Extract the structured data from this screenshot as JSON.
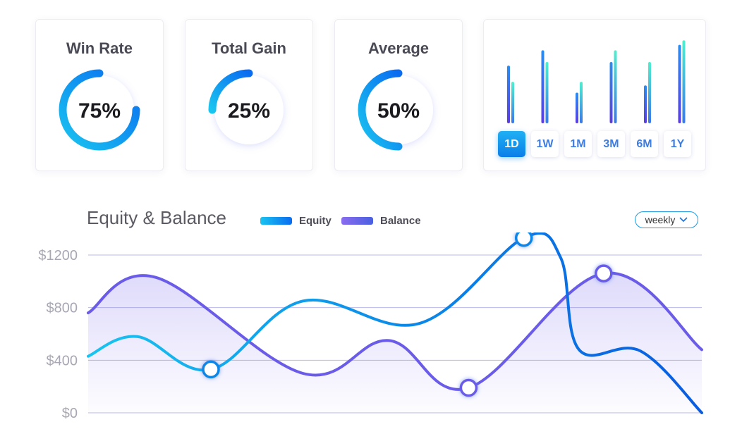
{
  "stats": [
    {
      "title": "Win Rate",
      "value_text": "75%",
      "fraction": 0.75
    },
    {
      "title": "Total Gain",
      "value_text": "25%",
      "fraction": 0.25
    },
    {
      "title": "Average",
      "value_text": "50%",
      "fraction": 0.5
    }
  ],
  "periods": {
    "options": [
      "1D",
      "1W",
      "1M",
      "3M",
      "6M",
      "1Y"
    ],
    "selected": "1D",
    "bars": [
      {
        "a": 0.64,
        "b": 0.46
      },
      {
        "a": 0.81,
        "b": 0.68
      },
      {
        "a": 0.34,
        "b": 0.46
      },
      {
        "a": 0.68,
        "b": 0.81
      },
      {
        "a": 0.42,
        "b": 0.68
      },
      {
        "a": 0.87,
        "b": 0.92
      }
    ]
  },
  "colors": {
    "equity": "#0a86e8",
    "equity_light": "#19c4f0",
    "balance": "#6a5ce8",
    "gauge_start": "#19c4f0",
    "gauge_end": "#0a6cf0",
    "grid": "#b8b8e8"
  },
  "chart_data": {
    "type": "line",
    "title": "Equity & Balance",
    "period_selector": "weekly",
    "legend_position": "top",
    "ylim": [
      0,
      1200
    ],
    "yticks": [
      "$1200",
      "$800",
      "$400",
      "$0"
    ],
    "ytick_values": [
      1200,
      800,
      400,
      0
    ],
    "grid": true,
    "series": [
      {
        "name": "Equity",
        "values": [
          [
            0,
            430
          ],
          [
            0.08,
            580
          ],
          [
            0.2,
            330
          ],
          [
            0.35,
            850
          ],
          [
            0.54,
            680
          ],
          [
            0.71,
            1330
          ],
          [
            0.77,
            1180
          ],
          [
            0.8,
            480
          ],
          [
            0.9,
            470
          ],
          [
            1.0,
            0
          ]
        ],
        "markers": [
          [
            0.2,
            330
          ],
          [
            0.71,
            1330
          ]
        ]
      },
      {
        "name": "Balance",
        "values": [
          [
            0,
            760
          ],
          [
            0.11,
            1030
          ],
          [
            0.35,
            300
          ],
          [
            0.49,
            550
          ],
          [
            0.62,
            190
          ],
          [
            0.84,
            1060
          ],
          [
            1.0,
            480
          ]
        ],
        "markers": [
          [
            0.62,
            190
          ],
          [
            0.84,
            1060
          ]
        ]
      }
    ]
  }
}
